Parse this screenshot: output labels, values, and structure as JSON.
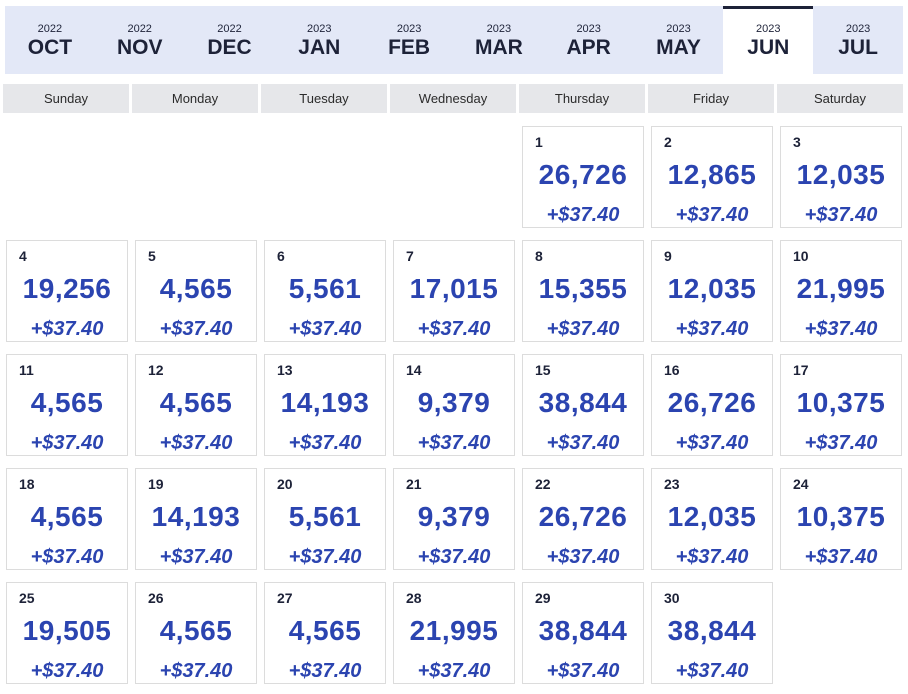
{
  "months": [
    {
      "year": "2022",
      "month": "OCT"
    },
    {
      "year": "2022",
      "month": "NOV"
    },
    {
      "year": "2022",
      "month": "DEC"
    },
    {
      "year": "2023",
      "month": "JAN"
    },
    {
      "year": "2023",
      "month": "FEB"
    },
    {
      "year": "2023",
      "month": "MAR"
    },
    {
      "year": "2023",
      "month": "APR"
    },
    {
      "year": "2023",
      "month": "MAY"
    },
    {
      "year": "2023",
      "month": "JUN",
      "active": true
    },
    {
      "year": "2023",
      "month": "JUL"
    }
  ],
  "weekdays": [
    "Sunday",
    "Monday",
    "Tuesday",
    "Wednesday",
    "Thursday",
    "Friday",
    "Saturday"
  ],
  "first_weekday_index": 4,
  "days": [
    {
      "day": "1",
      "value": "26,726",
      "price": "+$37.40"
    },
    {
      "day": "2",
      "value": "12,865",
      "price": "+$37.40"
    },
    {
      "day": "3",
      "value": "12,035",
      "price": "+$37.40"
    },
    {
      "day": "4",
      "value": "19,256",
      "price": "+$37.40"
    },
    {
      "day": "5",
      "value": "4,565",
      "price": "+$37.40"
    },
    {
      "day": "6",
      "value": "5,561",
      "price": "+$37.40"
    },
    {
      "day": "7",
      "value": "17,015",
      "price": "+$37.40"
    },
    {
      "day": "8",
      "value": "15,355",
      "price": "+$37.40"
    },
    {
      "day": "9",
      "value": "12,035",
      "price": "+$37.40"
    },
    {
      "day": "10",
      "value": "21,995",
      "price": "+$37.40"
    },
    {
      "day": "11",
      "value": "4,565",
      "price": "+$37.40"
    },
    {
      "day": "12",
      "value": "4,565",
      "price": "+$37.40"
    },
    {
      "day": "13",
      "value": "14,193",
      "price": "+$37.40"
    },
    {
      "day": "14",
      "value": "9,379",
      "price": "+$37.40"
    },
    {
      "day": "15",
      "value": "38,844",
      "price": "+$37.40"
    },
    {
      "day": "16",
      "value": "26,726",
      "price": "+$37.40"
    },
    {
      "day": "17",
      "value": "10,375",
      "price": "+$37.40"
    },
    {
      "day": "18",
      "value": "4,565",
      "price": "+$37.40"
    },
    {
      "day": "19",
      "value": "14,193",
      "price": "+$37.40"
    },
    {
      "day": "20",
      "value": "5,561",
      "price": "+$37.40"
    },
    {
      "day": "21",
      "value": "9,379",
      "price": "+$37.40"
    },
    {
      "day": "22",
      "value": "26,726",
      "price": "+$37.40"
    },
    {
      "day": "23",
      "value": "12,035",
      "price": "+$37.40"
    },
    {
      "day": "24",
      "value": "10,375",
      "price": "+$37.40"
    },
    {
      "day": "25",
      "value": "19,505",
      "price": "+$37.40"
    },
    {
      "day": "26",
      "value": "4,565",
      "price": "+$37.40"
    },
    {
      "day": "27",
      "value": "4,565",
      "price": "+$37.40"
    },
    {
      "day": "28",
      "value": "21,995",
      "price": "+$37.40"
    },
    {
      "day": "29",
      "value": "38,844",
      "price": "+$37.40"
    },
    {
      "day": "30",
      "value": "38,844",
      "price": "+$37.40"
    }
  ],
  "colors": {
    "accent": "#2b44b0",
    "nav_bg": "#e3e8f7",
    "text_dark": "#1d2238",
    "header_bg": "#e6e7ea"
  }
}
